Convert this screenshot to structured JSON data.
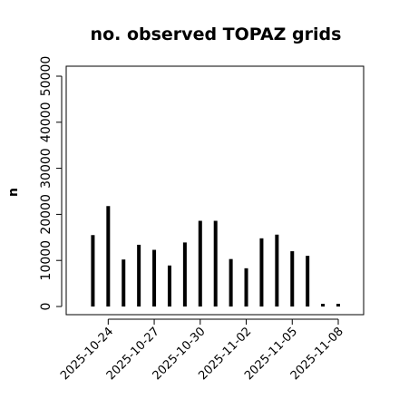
{
  "chart_data": {
    "type": "bar",
    "title": "no. observed TOPAZ grids",
    "xlabel": "",
    "ylabel": "n",
    "ylim": [
      0,
      52000
    ],
    "yticks": [
      0,
      10000,
      20000,
      30000,
      40000,
      50000
    ],
    "ytick_labels": [
      "0",
      "",
      "",
      "",
      "",
      ""
    ],
    "ytick_labels_rotated": [
      "0",
      "10000",
      "20000",
      "30000",
      "40000",
      "50000"
    ],
    "x_day_range": [
      "2025-10-22",
      "2025-11-08"
    ],
    "x_ticks": [
      {
        "date": "2025-10-24",
        "label": "2025-10-24",
        "color": "#000000"
      },
      {
        "date": "2025-10-27",
        "label": "2025-10-27",
        "color": "#000000"
      },
      {
        "date": "2025-10-30",
        "label": "2025-10-30",
        "color": "#228B22"
      },
      {
        "date": "2025-11-02",
        "label": "2025-11-02",
        "color": "#000000"
      },
      {
        "date": "2025-11-05",
        "label": "2025-11-05",
        "color": "#000000"
      },
      {
        "date": "2025-11-08",
        "label": "2025-11-08",
        "color": "#000000"
      }
    ],
    "bars": [
      {
        "date": "2025-10-23",
        "value": 15500
      },
      {
        "date": "2025-10-24",
        "value": 21800
      },
      {
        "date": "2025-10-25",
        "value": 10200
      },
      {
        "date": "2025-10-26",
        "value": 13400
      },
      {
        "date": "2025-10-27",
        "value": 12300
      },
      {
        "date": "2025-10-28",
        "value": 8900
      },
      {
        "date": "2025-10-29",
        "value": 13900
      },
      {
        "date": "2025-10-30",
        "value": 18600
      },
      {
        "date": "2025-10-31",
        "value": 18600
      },
      {
        "date": "2025-11-01",
        "value": 10300
      },
      {
        "date": "2025-11-02",
        "value": 8300
      },
      {
        "date": "2025-11-03",
        "value": 14800
      },
      {
        "date": "2025-11-04",
        "value": 15600
      },
      {
        "date": "2025-11-05",
        "value": 12000
      },
      {
        "date": "2025-11-06",
        "value": 11000
      },
      {
        "date": "2025-11-07",
        "value": 200
      },
      {
        "date": "2025-11-08",
        "value": 200
      }
    ],
    "grid": false,
    "legend": "none"
  }
}
